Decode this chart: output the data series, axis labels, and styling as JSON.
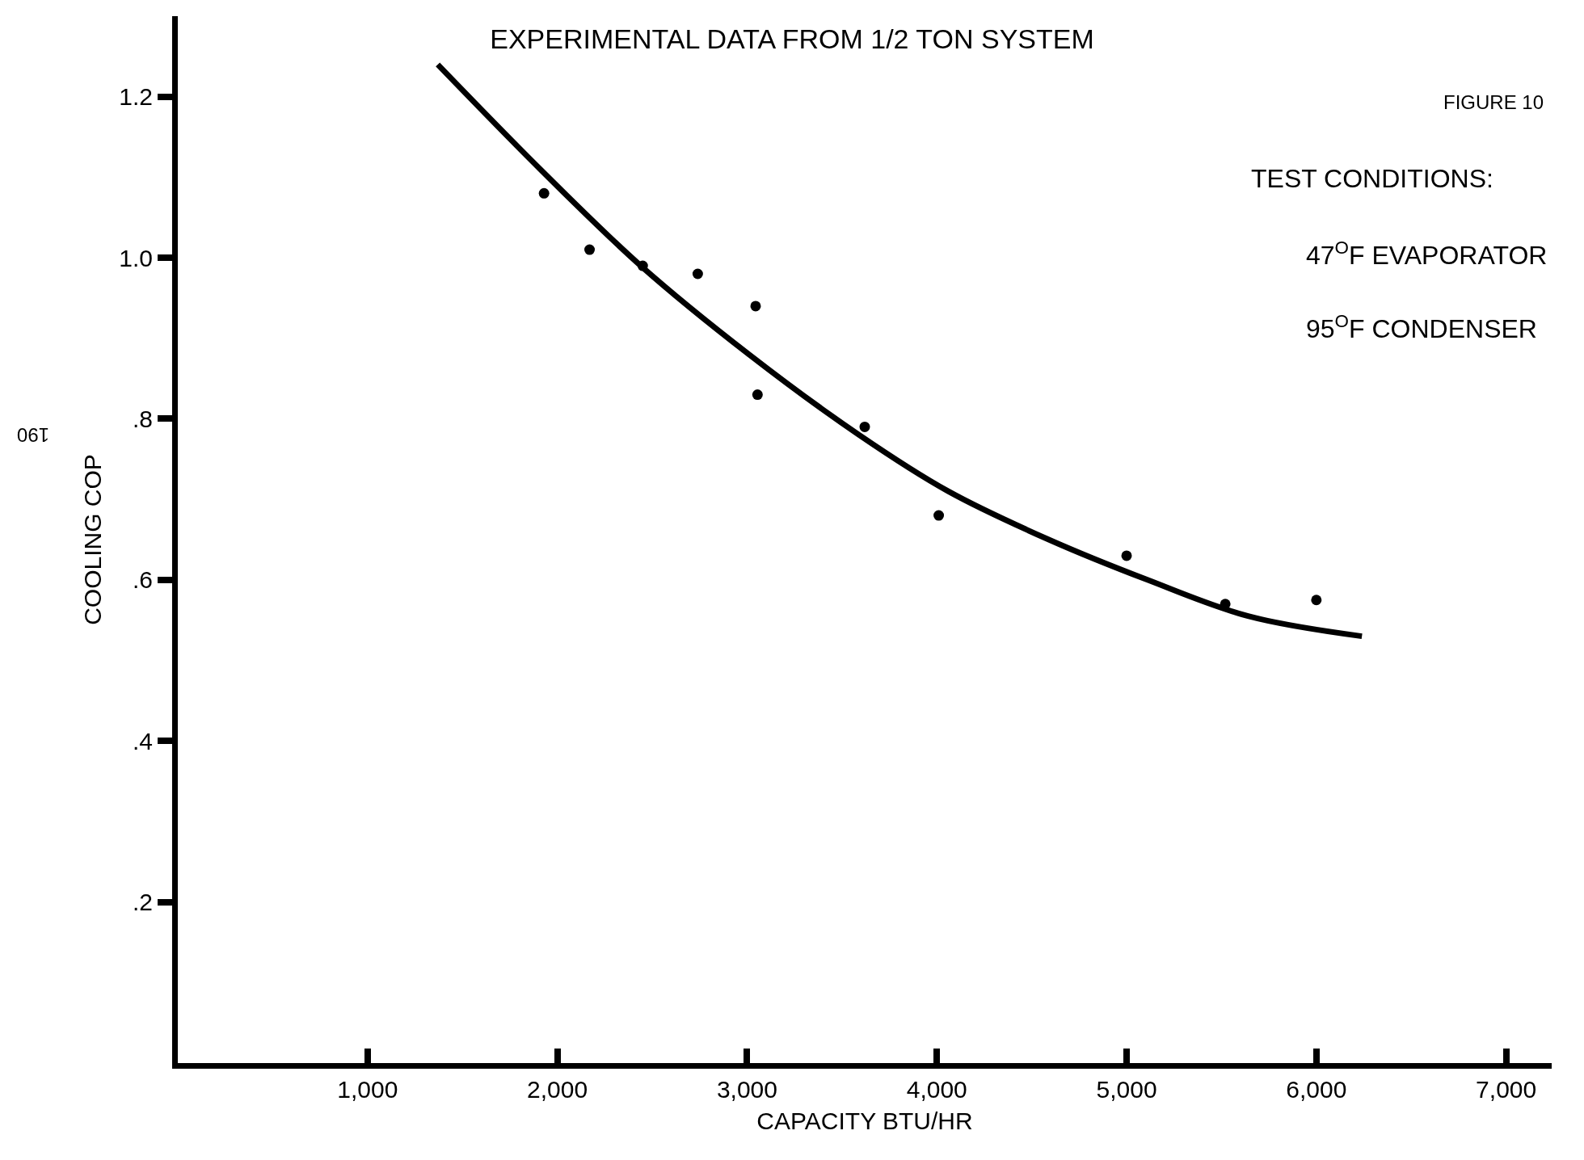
{
  "chart_data": {
    "type": "scatter",
    "title": "EXPERIMENTAL DATA FROM 1/2 TON SYSTEM",
    "xlabel": "CAPACITY BTU/HR",
    "ylabel": "COOLING COP",
    "annotations": [
      "FIGURE 10",
      "TEST CONDITIONS:",
      "47$^{O}$F EVAPORATOR",
      "95$^{O}$F CONDENSER",
      "190"
    ],
    "series": [
      {
        "color": "#000000",
        "marker": "circle",
        "x": [
          1930,
          2170,
          2450,
          2740,
          3045,
          3055,
          3620,
          4010,
          5000,
          5520,
          6000
        ],
        "values": [
          1.08,
          1.01,
          0.99,
          0.98,
          0.94,
          0.83,
          0.79,
          0.68,
          0.63,
          0.57,
          0.575
        ]
      },
      {
        "type": "line",
        "color": "#000000",
        "x": [
          1370,
          1910,
          2440,
          3010,
          3590,
          4060,
          4590,
          5110,
          5640,
          6240
        ],
        "values": [
          1.24,
          1.11,
          0.99,
          0.88,
          0.78,
          0.71,
          0.65,
          0.6,
          0.555,
          0.53
        ]
      }
    ],
    "xlim": [
      0,
      7240
    ],
    "ylim": [
      0,
      1.3
    ],
    "xticks": [
      {
        "value": 1000,
        "label": "1,000"
      },
      {
        "value": 2000,
        "label": "2,000"
      },
      {
        "value": 3000,
        "label": "3,000"
      },
      {
        "value": 4000,
        "label": "4,000"
      },
      {
        "value": 5000,
        "label": "5,000"
      },
      {
        "value": 6000,
        "label": "6,000"
      },
      {
        "value": 7000,
        "label": "7,000"
      }
    ],
    "yticks": [
      {
        "value": 0.2,
        "label": ".2"
      },
      {
        "value": 0.4,
        "label": ".4"
      },
      {
        "value": 0.6,
        "label": ".6"
      },
      {
        "value": 0.8,
        "label": ".8"
      },
      {
        "value": 1.0,
        "label": "1.0"
      },
      {
        "value": 1.2,
        "label": "1.2"
      }
    ]
  }
}
